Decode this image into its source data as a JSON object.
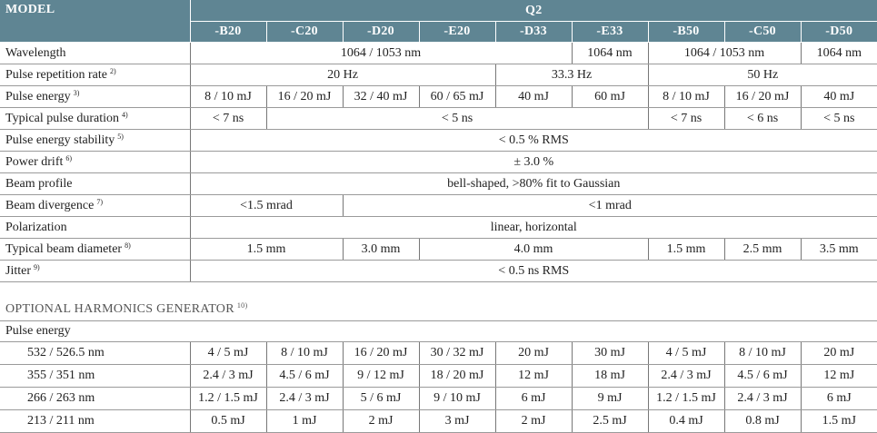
{
  "header": {
    "model": "MODEL",
    "group": "Q2",
    "variants": [
      "-B20",
      "-C20",
      "-D20",
      "-E20",
      "-D33",
      "-E33",
      "-B50",
      "-C50",
      "-D50"
    ]
  },
  "specs": [
    {
      "label": "Wavelength",
      "values": [
        "1064 / 1053 nm",
        "1064 nm",
        "1064 / 1053 nm",
        "1064 nm"
      ]
    },
    {
      "label": "Pulse repetition rate",
      "note": "2)",
      "values": [
        "20 Hz",
        "33.3 Hz",
        "50 Hz"
      ]
    },
    {
      "label": "Pulse energy",
      "note": "3)",
      "values": [
        "8 / 10 mJ",
        "16 / 20 mJ",
        "32 / 40 mJ",
        "60 / 65 mJ",
        "40 mJ",
        "60 mJ",
        "8 / 10 mJ",
        "16 / 20 mJ",
        "40 mJ"
      ]
    },
    {
      "label": "Typical pulse duration",
      "note": "4)",
      "values": [
        "< 7 ns",
        "< 5 ns",
        "< 7 ns",
        "< 6 ns",
        "< 5 ns"
      ]
    },
    {
      "label": "Pulse energy stability",
      "note": "5)",
      "values": [
        "< 0.5 % RMS"
      ]
    },
    {
      "label": "Power drift",
      "note": "6)",
      "values": [
        "± 3.0 %"
      ]
    },
    {
      "label": "Beam profile",
      "values": [
        "bell-shaped, >80% fit to Gaussian"
      ]
    },
    {
      "label": "Beam divergence",
      "note": "7)",
      "values": [
        "<1.5 mrad",
        "<1 mrad"
      ]
    },
    {
      "label": "Polarization",
      "values": [
        "linear, horizontal"
      ]
    },
    {
      "label": "Typical beam diameter",
      "note": "8)",
      "values": [
        "1.5 mm",
        "3.0 mm",
        "4.0 mm",
        "1.5 mm",
        "2.5 mm",
        "3.5 mm"
      ]
    },
    {
      "label": "Jitter",
      "note": "9)",
      "values": [
        "< 0.5 ns RMS"
      ]
    }
  ],
  "harmonics": {
    "title": "OPTIONAL HARMONICS GENERATOR",
    "note": "10)",
    "subtitle": "Pulse energy",
    "rows": [
      {
        "label": "532 / 526.5 nm",
        "values": [
          "4 / 5 mJ",
          "8 / 10 mJ",
          "16 / 20 mJ",
          "30 / 32 mJ",
          "20 mJ",
          "30 mJ",
          "4 / 5 mJ",
          "8 / 10 mJ",
          "20 mJ"
        ]
      },
      {
        "label": "355 / 351 nm",
        "values": [
          "2.4 / 3 mJ",
          "4.5 / 6 mJ",
          "9 / 12 mJ",
          "18 / 20 mJ",
          "12 mJ",
          "18 mJ",
          "2.4 / 3 mJ",
          "4.5 / 6 mJ",
          "12 mJ"
        ]
      },
      {
        "label": "266 / 263 nm",
        "values": [
          "1.2 / 1.5 mJ",
          "2.4 / 3 mJ",
          "5 / 6 mJ",
          "9 / 10 mJ",
          "6 mJ",
          "9 mJ",
          "1.2 / 1.5 mJ",
          "2.4 / 3 mJ",
          "6 mJ"
        ]
      },
      {
        "label": "213 / 211 nm",
        "values": [
          "0.5 mJ",
          "1 mJ",
          "2 mJ",
          "3 mJ",
          "2 mJ",
          "2.5 mJ",
          "0.4 mJ",
          "0.8 mJ",
          "1.5 mJ"
        ]
      }
    ]
  }
}
